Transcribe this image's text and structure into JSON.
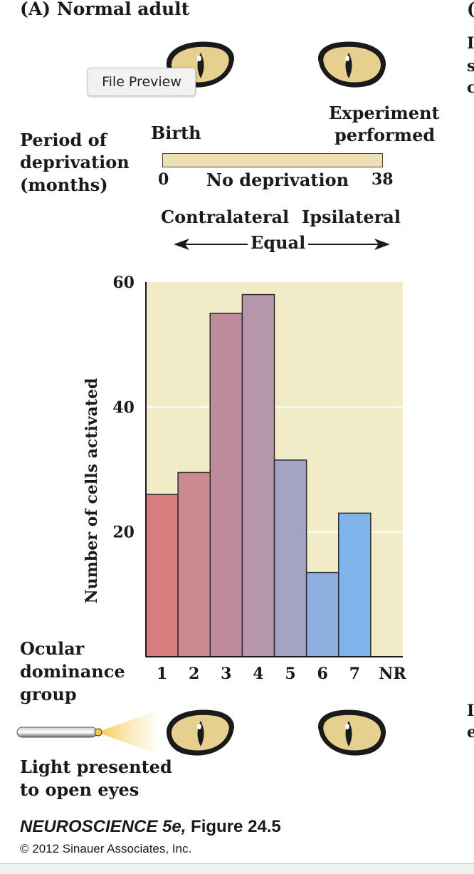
{
  "panel_title": "(A) Normal adult",
  "file_preview_label": "File Preview",
  "right_edge": {
    "top": "(",
    "lines": [
      "I",
      "s",
      "c"
    ],
    "lower": [
      "I",
      "e"
    ]
  },
  "deprivation": {
    "period_label": [
      "Period of",
      "deprivation",
      "(months)"
    ],
    "birth_label": "Birth",
    "experiment_label": [
      "Experiment",
      "performed"
    ],
    "start": "0",
    "end": "38",
    "condition": "No deprivation"
  },
  "dominance": {
    "left": "Contralateral",
    "right": "Ipsilateral",
    "middle": "Equal"
  },
  "chart_data": {
    "type": "bar",
    "ylabel": "Number of cells activated",
    "xlabel": [
      "Ocular",
      "dominance",
      "group"
    ],
    "ylim": [
      0,
      60
    ],
    "yticks": [
      20,
      40,
      60
    ],
    "categories": [
      "1",
      "2",
      "3",
      "4",
      "5",
      "6",
      "7",
      "NR"
    ],
    "values": [
      26,
      29.5,
      55,
      58,
      31.5,
      13.5,
      23,
      0
    ],
    "bar_colors": [
      "#d87d7d",
      "#c98a92",
      "#bd8b9c",
      "#b497ab",
      "#a3a3c3",
      "#8eaee0",
      "#7fb4ea"
    ],
    "background": "#f2ebc8",
    "grid": true
  },
  "stimulus_label": [
    "Light presented",
    "to open eyes"
  ],
  "caption": {
    "title_italic": "NEUROSCIENCE 5e,",
    "title_rest": " Figure 24.5",
    "copyright": "© 2012 Sinauer Associates, Inc."
  }
}
